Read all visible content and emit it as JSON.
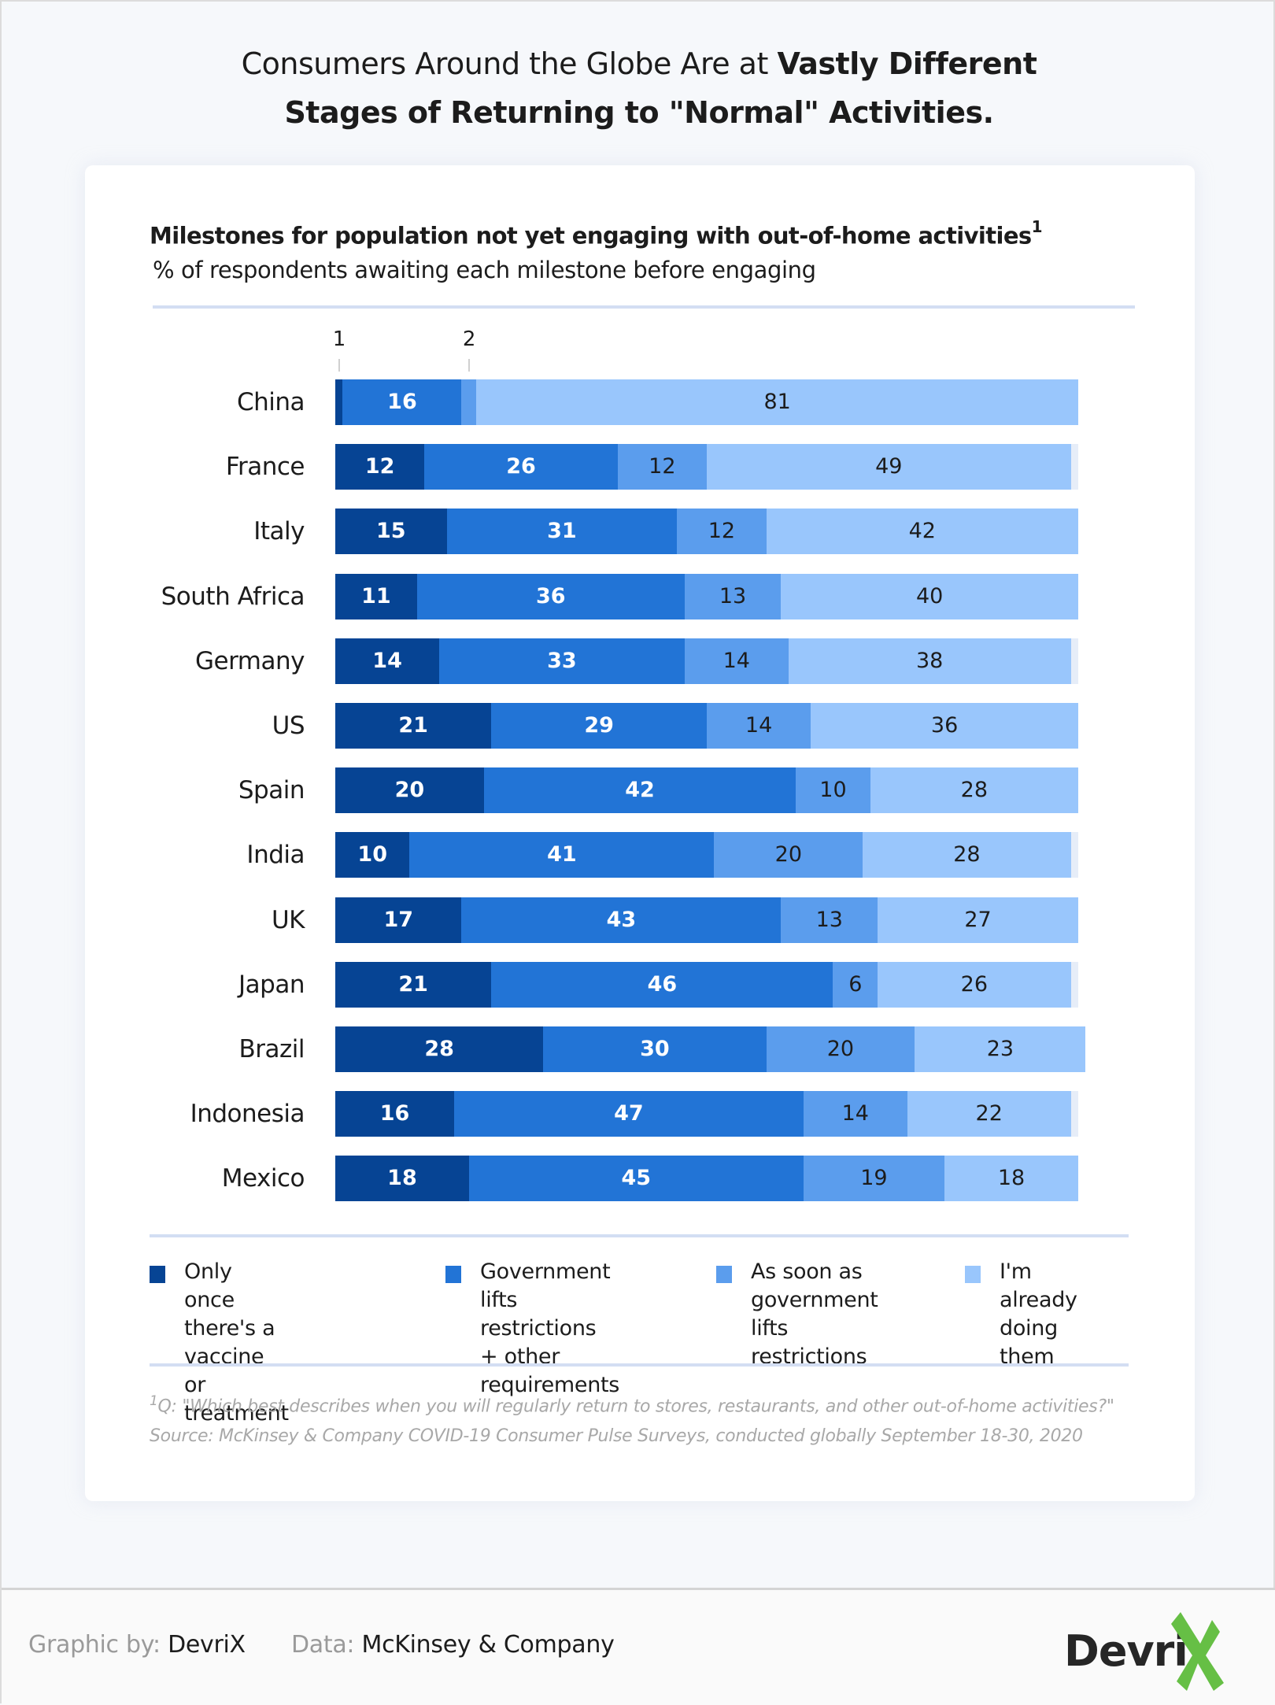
{
  "header": {
    "title_regular": "Consumers Around the Globe Are at ",
    "title_bold_1": "Vastly Different",
    "title_bold_2": "Stages of Returning to \"Normal\" Activities."
  },
  "chart_data": {
    "type": "bar",
    "orientation": "horizontal",
    "stacked": true,
    "title": "Milestones for population not yet engaging with out-of-home activities",
    "title_footnote_marker": "1",
    "subtitle": "% of respondents awaiting each milestone before engaging",
    "xlim": [
      0,
      100
    ],
    "grid": false,
    "legend_position": "bottom",
    "categories": [
      "China",
      "France",
      "Italy",
      "South Africa",
      "Germany",
      "US",
      "Spain",
      "India",
      "UK",
      "Japan",
      "Brazil",
      "Indonesia",
      "Mexico"
    ],
    "series": [
      {
        "name": "Only once there's a vaccine or treatment",
        "color": "#064494",
        "values": [
          1,
          12,
          15,
          11,
          14,
          21,
          20,
          10,
          17,
          21,
          28,
          16,
          18
        ]
      },
      {
        "name": "Government lifts restrictions + other requirements",
        "color": "#2274d6",
        "values": [
          16,
          26,
          31,
          36,
          33,
          29,
          42,
          41,
          43,
          46,
          30,
          47,
          45
        ]
      },
      {
        "name": "As soon as government lifts restrictions",
        "color": "#5b9ded",
        "values": [
          2,
          12,
          12,
          13,
          14,
          14,
          10,
          20,
          13,
          6,
          20,
          14,
          19
        ]
      },
      {
        "name": "I'm already doing them",
        "color": "#99c6fc",
        "values": [
          81,
          49,
          42,
          40,
          38,
          36,
          28,
          28,
          27,
          26,
          23,
          22,
          18
        ]
      }
    ],
    "annotations": [
      {
        "text": "1",
        "target": "China - Only once there's a vaccine or treatment"
      },
      {
        "text": "2",
        "target": "China - As soon as government lifts restrictions"
      }
    ]
  },
  "legend": [
    {
      "label": "Only once there's a\nvaccine or treatment",
      "color": "#064494"
    },
    {
      "label": "Government lifts\nrestrictions + other\nrequirements",
      "color": "#2274d6"
    },
    {
      "label": "As soon as\ngovernment lifts\nrestrictions",
      "color": "#5b9ded"
    },
    {
      "label": "I'm already\ndoing them",
      "color": "#99c6fc"
    }
  ],
  "footnotes": {
    "marker": "1",
    "question": "Q: \"Which best describes when you will regularly return to stores, restaurants, and other out-of-home activities?\"",
    "source": "Source: McKinsey & Company COVID-19 Consumer Pulse Surveys, conducted globally September 18-30, 2020"
  },
  "footer": {
    "graphic_by_key": "Graphic by:",
    "graphic_by_value": "DevriX",
    "data_key": "Data:",
    "data_value": "McKinsey & Company",
    "logo_text": "Devri",
    "logo_accent_color": "#66bf45"
  }
}
